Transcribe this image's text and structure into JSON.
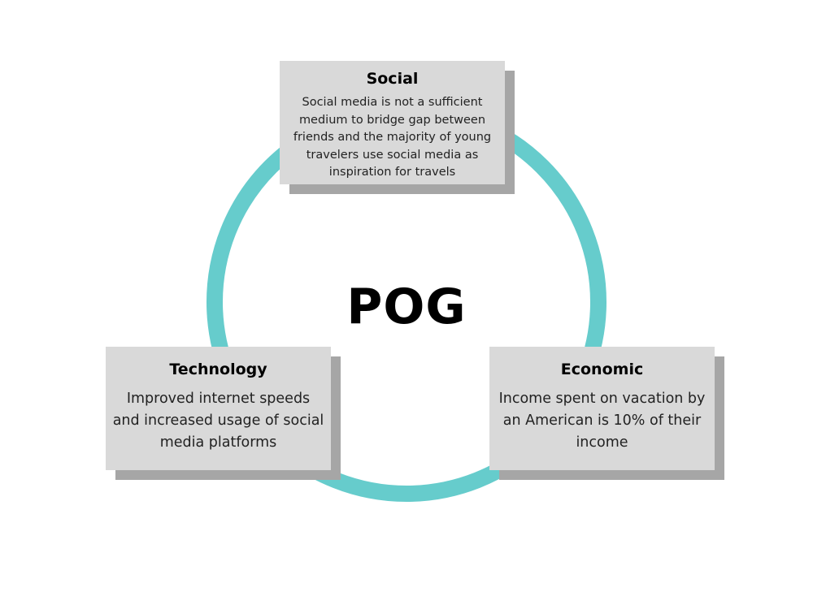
{
  "diagram": {
    "center_label": "POG",
    "ring_color": "#66cccc",
    "card_color": "#d9d9d9",
    "shadow_color": "#a6a6a6",
    "cards": {
      "social": {
        "title": "Social",
        "body": "Social media is not a sufficient medium to bridge gap between friends and the majority of young travelers use social media as inspiration for travels"
      },
      "technology": {
        "title": "Technology",
        "body": "Improved internet speeds and increased usage of social media platforms"
      },
      "economic": {
        "title": "Economic",
        "body": "Income spent on vacation by an American is 10% of their income"
      }
    }
  }
}
